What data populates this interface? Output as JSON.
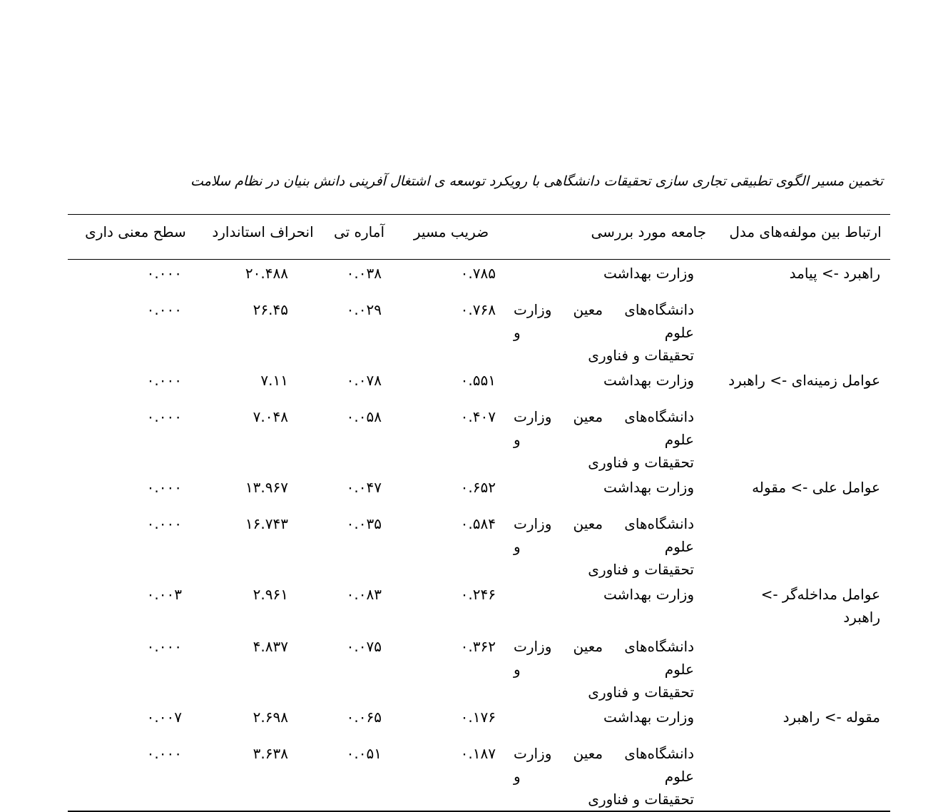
{
  "page": {
    "background": "#ffffff",
    "text_color": "#000000"
  },
  "caption": "تخمین مسیر الگوی تطبیقی تجاری سازی تحقیقات دانشگاهی با رویکرد توسعه ی اشتغال آفرینی دانش بنیان در نظام سلامت",
  "table": {
    "headers": [
      "ارتباط بین مولفه‌های مدل",
      "جامعه مورد بررسی",
      "ضریب مسیر",
      "آماره تی",
      "انحراف استاندارد",
      "سطح معنی داری"
    ],
    "rows": [
      {
        "relation": "راهبرد -> پیامد",
        "population": [
          "وزارت بهداشت"
        ],
        "zarib_masir": "۰.۷۸۵",
        "amareh_ti": "۰.۰۳۸",
        "enheraf_standard": "۲۰.۴۸۸",
        "sath_mani_dari": "۰.۰۰۰"
      },
      {
        "relation": "",
        "population": [
          "دانشگاه‌های معین وزارت علوم و",
          "تحقیقات و فناوری"
        ],
        "zarib_masir": "۰.۷۶۸",
        "amareh_ti": "۰.۰۲۹",
        "enheraf_standard": "۲۶.۴۵",
        "sath_mani_dari": "۰.۰۰۰"
      },
      {
        "relation": "عوامل زمینه‌ای -> راهبرد",
        "population": [
          "وزارت بهداشت"
        ],
        "zarib_masir": "۰.۵۵۱",
        "amareh_ti": "۰.۰۷۸",
        "enheraf_standard": "۷.۱۱",
        "sath_mani_dari": "۰.۰۰۰"
      },
      {
        "relation": "",
        "population": [
          "دانشگاه‌های معین وزارت علوم و",
          "تحقیقات و فناوری"
        ],
        "zarib_masir": "۰.۴۰۷",
        "amareh_ti": "۰.۰۵۸",
        "enheraf_standard": "۷.۰۴۸",
        "sath_mani_dari": "۰.۰۰۰"
      },
      {
        "relation": "عوامل علی -> مقوله",
        "population": [
          "وزارت بهداشت"
        ],
        "zarib_masir": "۰.۶۵۲",
        "amareh_ti": "۰.۰۴۷",
        "enheraf_standard": "۱۳.۹۶۷",
        "sath_mani_dari": "۰.۰۰۰"
      },
      {
        "relation": "",
        "population": [
          "دانشگاه‌های معین وزارت علوم و",
          "تحقیقات و فناوری"
        ],
        "zarib_masir": "۰.۵۸۴",
        "amareh_ti": "۰.۰۳۵",
        "enheraf_standard": "۱۶.۷۴۳",
        "sath_mani_dari": "۰.۰۰۰"
      },
      {
        "relation": "عوامل مداخله‌گر -> راهبرد",
        "population": [
          "وزارت بهداشت"
        ],
        "zarib_masir": "۰.۲۴۶",
        "amareh_ti": "۰.۰۸۳",
        "enheraf_standard": "۲.۹۶۱",
        "sath_mani_dari": "۰.۰۰۳"
      },
      {
        "relation": "",
        "population": [
          "دانشگاه‌های معین وزارت علوم و",
          "تحقیقات و فناوری"
        ],
        "zarib_masir": "۰.۳۶۲",
        "amareh_ti": "۰.۰۷۵",
        "enheraf_standard": "۴.۸۳۷",
        "sath_mani_dari": "۰.۰۰۰"
      },
      {
        "relation": "مقوله -> راهبرد",
        "population": [
          "وزارت بهداشت"
        ],
        "zarib_masir": "۰.۱۷۶",
        "amareh_ti": "۰.۰۶۵",
        "enheraf_standard": "۲.۶۹۸",
        "sath_mani_dari": "۰.۰۰۷"
      },
      {
        "relation": "",
        "population": [
          "دانشگاه‌های معین وزارت علوم و",
          "تحقیقات و فناوری"
        ],
        "zarib_masir": "۰.۱۸۷",
        "amareh_ti": "۰.۰۵۱",
        "enheraf_standard": "۳.۶۳۸",
        "sath_mani_dari": "۰.۰۰۰"
      }
    ]
  }
}
